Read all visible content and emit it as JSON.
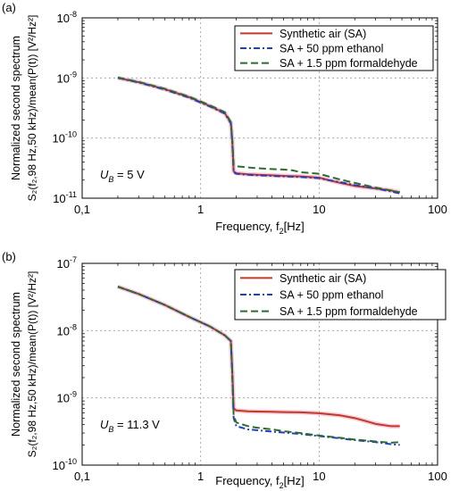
{
  "chart_data": [
    {
      "type": "line",
      "panel_label": "(a)",
      "xlabel_main": "Frequency, f",
      "xlabel_sub": "2",
      "xlabel_tail": "[Hz]",
      "ylabel_line1": "Normalized second spectrum",
      "ylabel_line2": "S₂(f₂,98 Hz,50 kHz)/mean(P(t)) [V²/Hz²]",
      "x_scale": "log",
      "y_scale": "log",
      "xlim": [
        0.1,
        100
      ],
      "ylim": [
        1e-11,
        1e-08
      ],
      "x_ticks": [
        0.1,
        1,
        10,
        100
      ],
      "x_tick_labels": [
        "0,1",
        "1",
        "10",
        "100"
      ],
      "y_ticks": [
        1e-11,
        1e-10,
        1e-09,
        1e-08
      ],
      "y_tick_labels": [
        {
          "base": "10",
          "exp": "-11"
        },
        {
          "base": "10",
          "exp": "-10"
        },
        {
          "base": "10",
          "exp": "-9"
        },
        {
          "base": "10",
          "exp": "-8"
        }
      ],
      "grid": true,
      "legend_position": "top-right",
      "annotation": {
        "main": "U",
        "sub": "B",
        "tail": " = 5 V"
      },
      "series": [
        {
          "name": "Synthetic air (SA)",
          "color": "#c0392b",
          "dash": "solid",
          "x": [
            0.2,
            0.3,
            0.5,
            0.8,
            1.2,
            1.6,
            1.8,
            1.85,
            1.9,
            2.0,
            2.5,
            3,
            4,
            5,
            7,
            10,
            12,
            15,
            20,
            30,
            40,
            48
          ],
          "y": [
            1e-09,
            8.5e-10,
            6.5e-10,
            4.8e-10,
            3.4e-10,
            2.6e-10,
            1.8e-10,
            9e-11,
            2.8e-11,
            2.6e-11,
            2.5e-11,
            2.45e-11,
            2.4e-11,
            2.35e-11,
            2.3e-11,
            2.2e-11,
            2e-11,
            1.8e-11,
            1.6e-11,
            1.45e-11,
            1.35e-11,
            1.25e-11
          ]
        },
        {
          "name": "SA + 50 ppm ethanol",
          "color": "#1f3fbf",
          "dash": "dashdot",
          "x": [
            0.2,
            0.3,
            0.5,
            0.8,
            1.2,
            1.6,
            1.8,
            1.85,
            1.9,
            2.0,
            2.5,
            3,
            4,
            5,
            7,
            10,
            12,
            15,
            20,
            30,
            40,
            48
          ],
          "y": [
            1e-09,
            8.4e-10,
            6.4e-10,
            4.7e-10,
            3.35e-10,
            2.55e-10,
            1.75e-10,
            8.5e-11,
            2.7e-11,
            2.55e-11,
            2.45e-11,
            2.4e-11,
            2.35e-11,
            2.3e-11,
            2.25e-11,
            2.15e-11,
            2e-11,
            1.85e-11,
            1.65e-11,
            1.45e-11,
            1.3e-11,
            1.2e-11
          ]
        },
        {
          "name": "SA + 1.5 ppm formaldehyde",
          "color": "#2e6b2e",
          "dash": "dash",
          "x": [
            0.2,
            0.3,
            0.5,
            0.8,
            1.2,
            1.6,
            1.8,
            1.85,
            1.9,
            2.0,
            2.5,
            3,
            4,
            5,
            6,
            7,
            10,
            12,
            15,
            20,
            30,
            40,
            48
          ],
          "y": [
            1.02e-09,
            8.6e-10,
            6.6e-10,
            4.9e-10,
            3.5e-10,
            2.7e-10,
            1.85e-10,
            9.5e-11,
            3.6e-11,
            3.4e-11,
            3.25e-11,
            3.15e-11,
            3.05e-11,
            3e-11,
            2.9e-11,
            2.7e-11,
            2.55e-11,
            2.3e-11,
            2.05e-11,
            1.8e-11,
            1.5e-11,
            1.35e-11,
            1.25e-11
          ]
        }
      ]
    },
    {
      "type": "line",
      "panel_label": "(b)",
      "xlabel_main": "Frequency, f",
      "xlabel_sub": "2",
      "xlabel_tail": "[Hz]",
      "ylabel_line1": "Normalized second spectrum",
      "ylabel_line2": "S₂(f₂,98 Hz,50 kHz)/mean(P(t)) [V²/Hz²]",
      "x_scale": "log",
      "y_scale": "log",
      "xlim": [
        0.1,
        100
      ],
      "ylim": [
        1e-10,
        1e-07
      ],
      "x_ticks": [
        0.1,
        1,
        10,
        100
      ],
      "x_tick_labels": [
        "0,1",
        "1",
        "10",
        "100"
      ],
      "y_ticks": [
        1e-10,
        1e-09,
        1e-08,
        1e-07
      ],
      "y_tick_labels": [
        {
          "base": "10",
          "exp": "-10"
        },
        {
          "base": "10",
          "exp": "-9"
        },
        {
          "base": "10",
          "exp": "-8"
        },
        {
          "base": "10",
          "exp": "-7"
        }
      ],
      "grid": true,
      "legend_position": "top-right",
      "annotation": {
        "main": "U",
        "sub": "B",
        "tail": " = 11.3 V"
      },
      "series": [
        {
          "name": "Synthetic air (SA)",
          "color": "#c0392b",
          "dash": "solid",
          "x": [
            0.2,
            0.3,
            0.5,
            0.8,
            1.2,
            1.6,
            1.8,
            1.85,
            1.9,
            2.0,
            2.5,
            3,
            4,
            5,
            7,
            10,
            15,
            20,
            25,
            30,
            40,
            48
          ],
          "y": [
            4.5e-08,
            3.5e-08,
            2.4e-08,
            1.6e-08,
            1.15e-08,
            8.5e-09,
            7e-09,
            2.5e-09,
            7e-10,
            6.5e-10,
            6.3e-10,
            6.25e-10,
            6.2e-10,
            6.15e-10,
            6.1e-10,
            5.9e-10,
            5.5e-10,
            5e-10,
            4.5e-10,
            4.1e-10,
            3.8e-10,
            3.8e-10
          ]
        },
        {
          "name": "SA + 50 ppm ethanol",
          "color": "#1f3fbf",
          "dash": "dashdot",
          "x": [
            0.2,
            0.3,
            0.5,
            0.8,
            1.2,
            1.6,
            1.8,
            1.85,
            1.9,
            2.0,
            2.5,
            3,
            4,
            5,
            7,
            10,
            15,
            20,
            30,
            40,
            48
          ],
          "y": [
            4.5e-08,
            3.5e-08,
            2.4e-08,
            1.6e-08,
            1.15e-08,
            8.5e-09,
            7e-09,
            2.3e-09,
            5e-10,
            3.8e-10,
            3.4e-10,
            3.3e-10,
            3.15e-10,
            3.05e-10,
            2.9e-10,
            2.7e-10,
            2.5e-10,
            2.35e-10,
            2.2e-10,
            2.05e-10,
            2e-10
          ]
        },
        {
          "name": "SA + 1.5 ppm formaldehyde",
          "color": "#2e6b2e",
          "dash": "dash",
          "x": [
            0.2,
            0.3,
            0.5,
            0.8,
            1.2,
            1.6,
            1.8,
            1.85,
            1.9,
            2.0,
            2.5,
            3,
            4,
            5,
            7,
            10,
            15,
            20,
            30,
            40,
            48
          ],
          "y": [
            4.5e-08,
            3.5e-08,
            2.4e-08,
            1.6e-08,
            1.15e-08,
            8.5e-09,
            7e-09,
            2.4e-09,
            5.5e-10,
            4.3e-10,
            3.8e-10,
            3.6e-10,
            3.4e-10,
            3.2e-10,
            3e-10,
            2.75e-10,
            2.55e-10,
            2.4e-10,
            2.25e-10,
            2.15e-10,
            2.2e-10
          ]
        }
      ]
    }
  ]
}
